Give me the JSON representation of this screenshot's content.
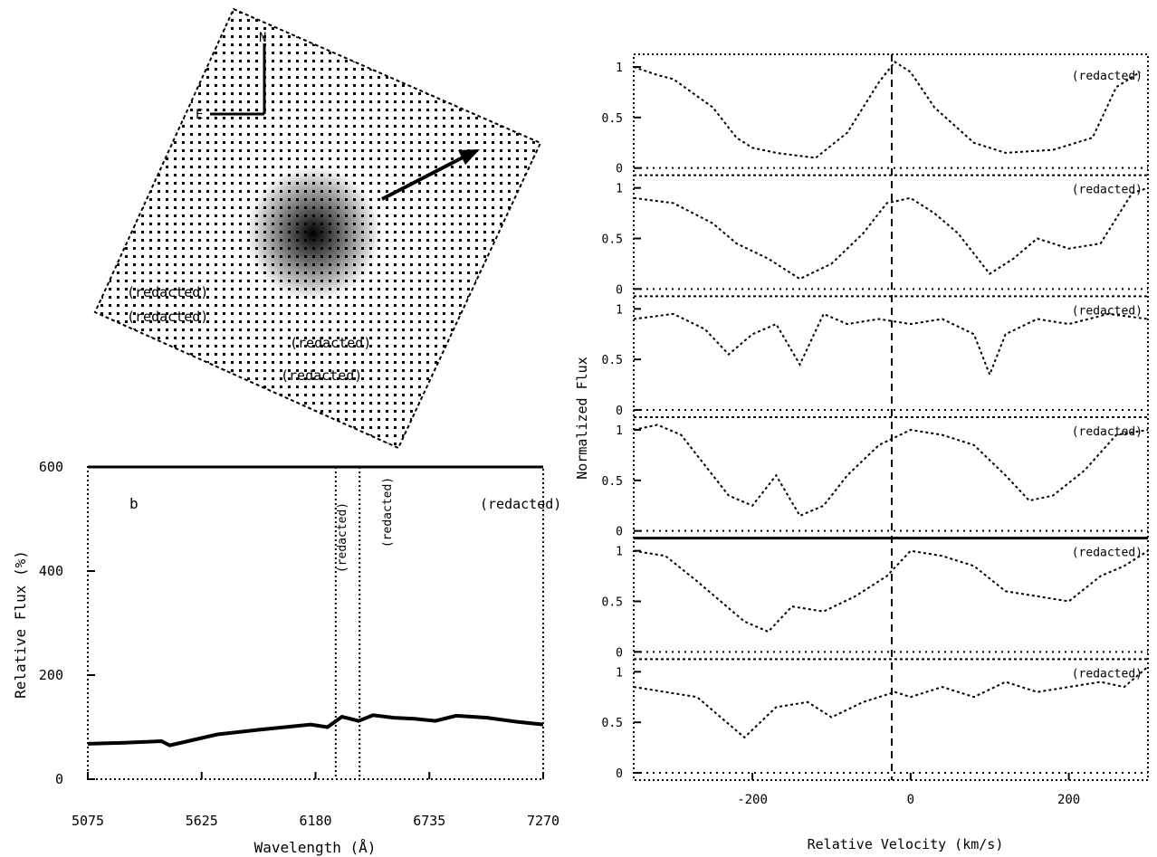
{
  "chart_data": [
    {
      "type": "image",
      "panel": "image-inset",
      "annotations": [
        "N",
        "E"
      ],
      "text_lines": [
        "(redacted)",
        "(redacted)",
        "(redacted)",
        "(redacted)"
      ]
    },
    {
      "type": "line",
      "panel": "spectrum",
      "xlabel": "Wavelength (Å)",
      "ylabel": "Relative Flux (%)",
      "x_ticks": [
        "5075",
        "5625",
        "6180",
        "6735",
        "7270"
      ],
      "y_ticks": [
        "0",
        "200",
        "400",
        "600"
      ],
      "xlim": [
        5075,
        7270
      ],
      "ylim": [
        0,
        600
      ],
      "panel_label": "b",
      "corner_label": "(redacted)",
      "marker_lines": [
        {
          "x": 6270,
          "labels": [
            "(redacted)"
          ]
        },
        {
          "x": 6385,
          "labels": [
            "(redacted)"
          ]
        }
      ],
      "series": [
        {
          "x": [
            5075,
            5250,
            5430,
            5470,
            5700,
            5900,
            6150,
            6230,
            6300,
            6380,
            6450,
            6550,
            6650,
            6750,
            6850,
            7000,
            7150,
            7270
          ],
          "values": [
            68,
            70,
            73,
            65,
            86,
            95,
            105,
            100,
            120,
            112,
            123,
            118,
            116,
            112,
            122,
            118,
            110,
            105
          ]
        }
      ]
    },
    {
      "type": "line",
      "panel": "velocity-stack",
      "xlabel": "Relative Velocity (km/s)",
      "ylabel": "Normalized Flux",
      "x_ticks": [
        "-200",
        "0",
        "200"
      ],
      "xlim": [
        -350,
        300
      ],
      "panels": [
        {
          "label": "(redacted)",
          "y_ticks": [
            "0",
            "0.5",
            "1"
          ],
          "x": [
            -350,
            -320,
            -300,
            -250,
            -220,
            -200,
            -170,
            -120,
            -80,
            -40,
            -20,
            0,
            30,
            80,
            120,
            180,
            230,
            260,
            290
          ],
          "values": [
            1.0,
            0.92,
            0.88,
            0.6,
            0.3,
            0.2,
            0.15,
            0.1,
            0.35,
            0.85,
            1.05,
            0.95,
            0.6,
            0.25,
            0.15,
            0.18,
            0.3,
            0.8,
            0.95
          ]
        },
        {
          "label": "(redacted)",
          "y_ticks": [
            "0",
            "0.5",
            "1"
          ],
          "x": [
            -350,
            -300,
            -250,
            -220,
            -180,
            -140,
            -100,
            -60,
            -30,
            0,
            30,
            60,
            100,
            130,
            160,
            200,
            240,
            280,
            300
          ],
          "values": [
            0.9,
            0.85,
            0.65,
            0.45,
            0.3,
            0.1,
            0.25,
            0.55,
            0.85,
            0.9,
            0.75,
            0.55,
            0.15,
            0.3,
            0.5,
            0.4,
            0.45,
            0.95,
            1.0
          ]
        },
        {
          "label": "(redacted)",
          "y_ticks": [
            "0",
            "0.5",
            "1"
          ],
          "x": [
            -350,
            -300,
            -260,
            -230,
            -200,
            -170,
            -140,
            -110,
            -80,
            -40,
            0,
            40,
            80,
            100,
            120,
            160,
            200,
            250,
            300
          ],
          "values": [
            0.9,
            0.95,
            0.8,
            0.55,
            0.75,
            0.85,
            0.45,
            0.95,
            0.85,
            0.9,
            0.85,
            0.9,
            0.75,
            0.35,
            0.75,
            0.9,
            0.85,
            0.95,
            0.9
          ]
        },
        {
          "label": "(redacted)",
          "y_ticks": [
            "0",
            "0.5",
            "1"
          ],
          "x": [
            -350,
            -320,
            -290,
            -260,
            -230,
            -200,
            -170,
            -140,
            -110,
            -80,
            -40,
            0,
            40,
            80,
            120,
            150,
            180,
            220,
            260,
            300
          ],
          "values": [
            1.0,
            1.05,
            0.95,
            0.65,
            0.35,
            0.25,
            0.55,
            0.15,
            0.25,
            0.55,
            0.85,
            1.0,
            0.95,
            0.85,
            0.55,
            0.3,
            0.35,
            0.6,
            0.95,
            1.0
          ]
        },
        {
          "label": "(redacted)",
          "y_ticks": [
            "0",
            "0.5",
            "1"
          ],
          "x": [
            -350,
            -310,
            -270,
            -240,
            -210,
            -180,
            -150,
            -110,
            -70,
            -30,
            0,
            40,
            80,
            120,
            160,
            200,
            240,
            270,
            300
          ],
          "values": [
            1.0,
            0.95,
            0.7,
            0.5,
            0.3,
            0.2,
            0.45,
            0.4,
            0.55,
            0.75,
            1.0,
            0.95,
            0.85,
            0.6,
            0.55,
            0.5,
            0.75,
            0.85,
            1.0
          ]
        },
        {
          "label": "(redacted)",
          "y_ticks": [
            "0",
            "0.5",
            "1"
          ],
          "x": [
            -350,
            -310,
            -270,
            -240,
            -210,
            -170,
            -130,
            -100,
            -60,
            -20,
            0,
            40,
            80,
            120,
            160,
            200,
            240,
            270,
            300
          ],
          "values": [
            0.85,
            0.8,
            0.75,
            0.55,
            0.35,
            0.65,
            0.7,
            0.55,
            0.7,
            0.8,
            0.75,
            0.85,
            0.75,
            0.9,
            0.8,
            0.85,
            0.9,
            0.85,
            1.05
          ]
        }
      ]
    }
  ]
}
